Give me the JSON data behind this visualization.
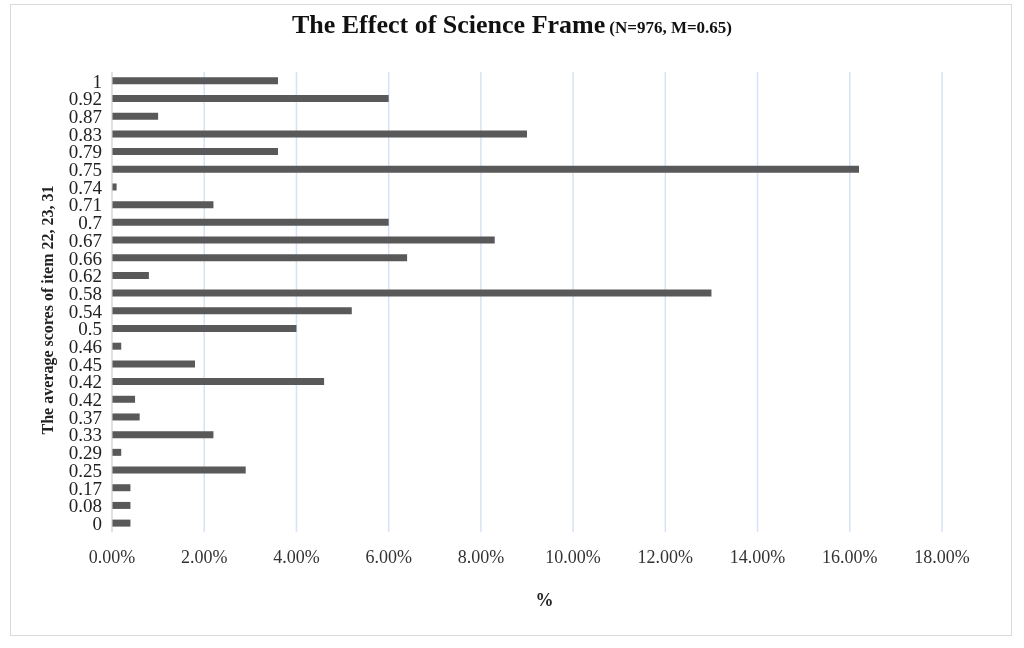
{
  "chart_data": {
    "type": "bar",
    "orientation": "horizontal",
    "title": "The Effect of Science Frame",
    "subtitle": "(N=976, M=0.65)",
    "xlabel": "%",
    "ylabel": "The average scores of item 22, 23, 31",
    "categories": [
      "1",
      "0.92",
      "0.87",
      "0.83",
      "0.79",
      "0.75",
      "0.74",
      "0.71",
      "0.7",
      "0.67",
      "0.66",
      "0.62",
      "0.58",
      "0.54",
      "0.5",
      "0.46",
      "0.45",
      "0.42",
      "0.42",
      "0.37",
      "0.33",
      "0.29",
      "0.25",
      "0.17",
      "0.08",
      "0"
    ],
    "values": [
      3.6,
      6.0,
      1.0,
      9.0,
      3.6,
      16.2,
      0.1,
      2.2,
      6.0,
      8.3,
      6.4,
      0.8,
      13.0,
      5.2,
      4.0,
      0.2,
      1.8,
      4.6,
      0.5,
      0.6,
      2.2,
      0.2,
      2.9,
      0.4,
      0.4,
      0.4
    ],
    "color": "#595959",
    "xlim": [
      0,
      18
    ],
    "xticks": [
      {
        "value": 0,
        "label": "0.00%"
      },
      {
        "value": 2,
        "label": "2.00%"
      },
      {
        "value": 4,
        "label": "4.00%"
      },
      {
        "value": 6,
        "label": "6.00%"
      },
      {
        "value": 8,
        "label": "8.00%"
      },
      {
        "value": 10,
        "label": "10.00%"
      },
      {
        "value": 12,
        "label": "12.00%"
      },
      {
        "value": 14,
        "label": "14.00%"
      },
      {
        "value": 16,
        "label": "16.00%"
      },
      {
        "value": 18,
        "label": "18.00%"
      }
    ],
    "grid": "x",
    "legend": false
  }
}
